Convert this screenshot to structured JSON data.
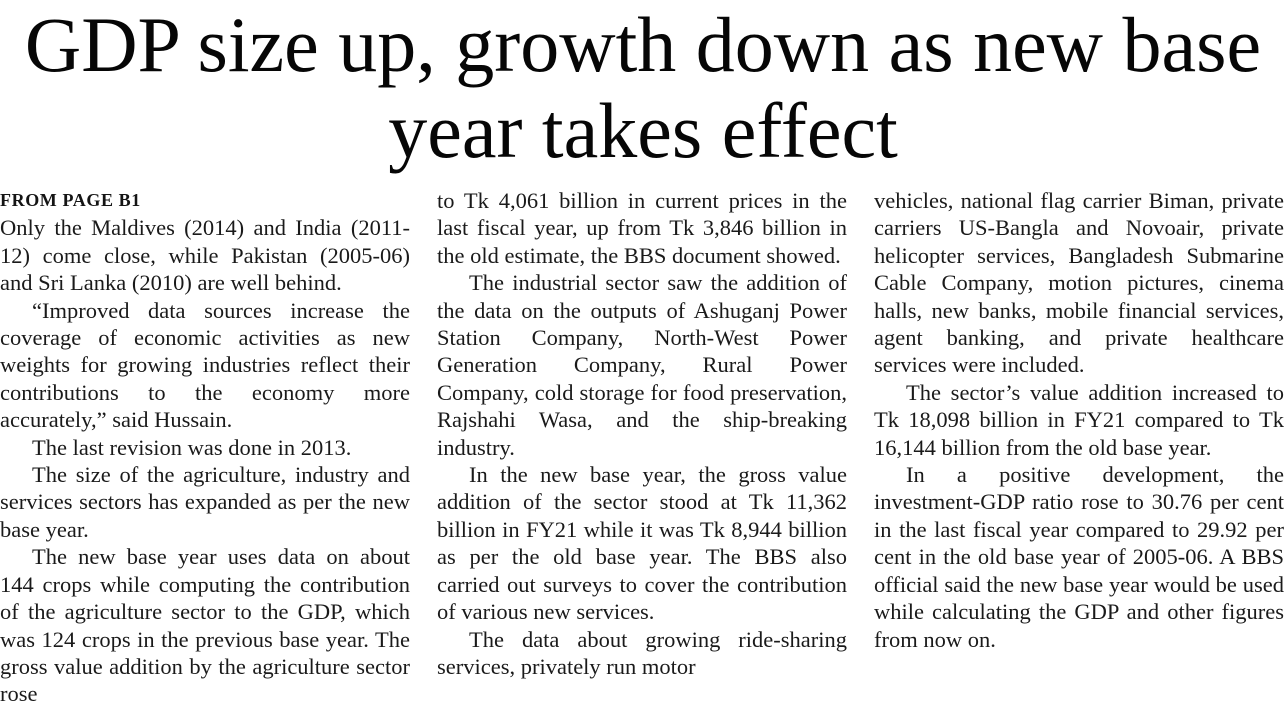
{
  "article": {
    "headline": "GDP size up, growth down as new base year takes effect",
    "kicker": "FROM PAGE B1",
    "columns": [
      {
        "paragraphs": [
          {
            "text": "Only the Maldives (2014) and India (2011-12) come close, while Pakistan (2005-06) and Sri Lanka (2010) are well behind."
          },
          {
            "text": "“Improved data sources increase the coverage of economic activities as new weights for growing industries reflect their contributions to the economy more accurately,” said Hussain."
          },
          {
            "text": "The last revision was done in 2013."
          },
          {
            "text": "The size of the agriculture, industry and services sectors has expanded as per the new base year."
          },
          {
            "text": "The new base year uses data on about 144 crops while computing the contribution of the agriculture sector to the GDP, which was 124 crops in the previous base year. The gross value addition by the agriculture sector rose"
          }
        ]
      },
      {
        "paragraphs": [
          {
            "text": "to Tk 4,061 billion in current prices in the last fiscal year, up from Tk 3,846 billion in the old estimate, the BBS document showed."
          },
          {
            "text": "The industrial sector saw the addition of the data on the outputs of Ashuganj Power Station Company, North-West Power Generation Company, Rural Power Company, cold storage for food preservation, Rajshahi Wasa, and the ship-breaking industry."
          },
          {
            "text": "In the new base year, the gross value addition of the sector stood at Tk 11,362 billion in FY21 while it was Tk 8,944 billion as per the old base year. The BBS also carried out surveys to cover the contribution of various new services."
          },
          {
            "text": "The data about growing ride-sharing services, privately run motor"
          }
        ]
      },
      {
        "paragraphs": [
          {
            "text": "vehicles, national flag carrier Biman, private carriers US-Bangla and Novoair, private helicopter services, Bangladesh Submarine Cable Company, motion pictures, cinema halls, new banks, mobile financial services, agent banking, and private healthcare services were included."
          },
          {
            "text": "The sector’s value addition increased to Tk 18,098 billion in FY21 compared to Tk 16,144 billion from the old base year."
          },
          {
            "text": "In a positive development, the investment-GDP ratio rose to 30.76 per cent in the last fiscal year compared to 29.92 per cent in the old base year of 2005-06. A BBS official said the new base year would be used while calculating the GDP and other figures from now on."
          }
        ]
      }
    ]
  }
}
